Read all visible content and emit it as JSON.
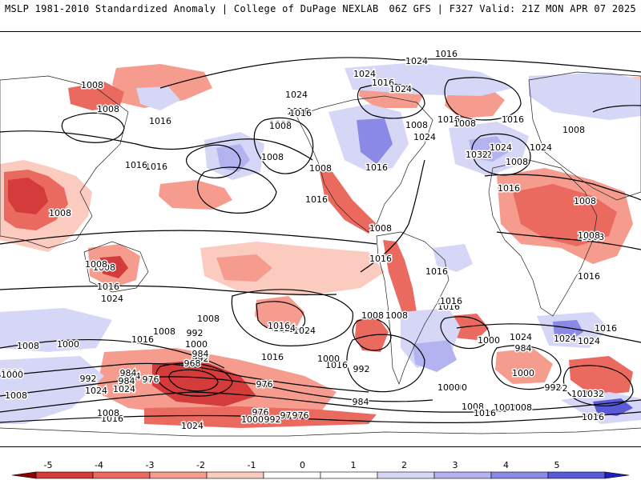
{
  "header": {
    "left_title": "MSLP 1981-2010 Standardized Anomaly | College of DuPage NEXLAB",
    "right_title": "06Z GFS | F327 Valid: 21Z MON APR 07 2025"
  },
  "colors": {
    "neg5": "#8b0000",
    "neg4": "#d43b3b",
    "neg3": "#ea6a60",
    "neg2": "#f59c8e",
    "neg1": "#fbcbc0",
    "zero": "#ffffff",
    "pos1": "#d6d6f7",
    "pos2": "#b3b3ef",
    "pos3": "#8a8ae6",
    "pos4": "#5a5ad9",
    "pos5": "#2020c0",
    "isobar": "#000000"
  },
  "isobar_labels": [
    "1016",
    "1024",
    "1008",
    "1024",
    "1016",
    "1016",
    "1008",
    "1024",
    "1016",
    "1008",
    "1016",
    "1008",
    "1024",
    "1016",
    "1016",
    "1024",
    "1016",
    "1008",
    "1016",
    "1008",
    "1032",
    "1016",
    "1008",
    "1024",
    "1032",
    "1008",
    "1024",
    "1008",
    "1008",
    "1016",
    "1008",
    "1008",
    "1008",
    "1008",
    "1016",
    "1008",
    "1008",
    "1016",
    "1008",
    "1016",
    "1024",
    "1016",
    "1024",
    "1024",
    "1008",
    "1016",
    "1008",
    "1016",
    "1016",
    "1024",
    "1008",
    "1016",
    "1000",
    "1008",
    "992",
    "1000",
    "984",
    "1016",
    "1016",
    "1016",
    "1000",
    "1024",
    "1000",
    "984",
    "992",
    "984",
    "1008",
    "1016",
    "1000",
    "992",
    "976",
    "1008",
    "1024",
    "1032",
    "976",
    "968",
    "976",
    "1008",
    "1000",
    "992",
    "984",
    "1000",
    "1024",
    "1016",
    "1000",
    "984",
    "1016",
    "992",
    "976",
    "984",
    "1008",
    "1000",
    "1024",
    "992",
    "976",
    "1000",
    "992",
    "1032",
    "1024",
    "1000",
    "1008",
    "1016"
  ],
  "colorbar": {
    "ticks": [
      "-5",
      "-4",
      "-3",
      "-2",
      "-1",
      "0",
      "1",
      "2",
      "3",
      "4",
      "5"
    ]
  }
}
